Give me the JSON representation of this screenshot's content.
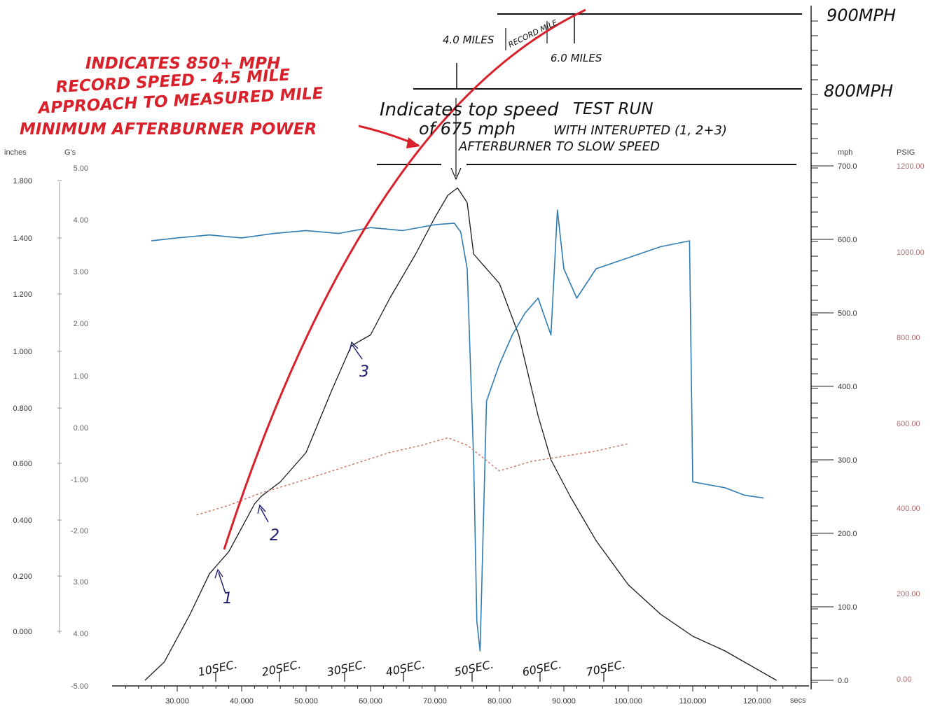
{
  "chart_data": {
    "type": "line",
    "x": {
      "ticks": [
        "30.000",
        "40.000",
        "50.000",
        "60.000",
        "70.000",
        "80.000",
        "90.000",
        "100.000",
        "110.000",
        "120.000"
      ],
      "label": "secs",
      "range": [
        20,
        130
      ]
    },
    "axes": {
      "inches": {
        "label": "inches",
        "ticks": [
          "1.800",
          "1.400",
          "1.200",
          "1.000",
          "0.800",
          "0.600",
          "0.400",
          "0.200",
          "0.000"
        ]
      },
      "g": {
        "label": "G's",
        "ticks": [
          "5.00",
          "4.00",
          "3.00",
          "2.00",
          "1.00",
          "0.00",
          "-1.00",
          "-2.00",
          "3.00",
          "4.00",
          "-5.00"
        ]
      },
      "mph": {
        "label": "mph",
        "ticks": [
          "700.0",
          "600.0",
          "500.0",
          "400.0",
          "300.0",
          "200.0",
          "100.0",
          "0.0"
        ],
        "range": [
          0,
          700
        ]
      },
      "psig": {
        "label": "PSIG",
        "ticks": [
          "1200.00",
          "1000.00",
          "800.00",
          "600.00",
          "400.00",
          "200.00",
          "0.00"
        ]
      }
    },
    "series": [
      {
        "color": "#1a1a1a",
        "points": [
          [
            25,
            0
          ],
          [
            28,
            25
          ],
          [
            32,
            90
          ],
          [
            35,
            145
          ],
          [
            36.5,
            160
          ],
          [
            38,
            175
          ],
          [
            42,
            240
          ],
          [
            43,
            250
          ],
          [
            46,
            270
          ],
          [
            50,
            310
          ],
          [
            54,
            395
          ],
          [
            57,
            455
          ],
          [
            60,
            470
          ],
          [
            63,
            520
          ],
          [
            67,
            580
          ],
          [
            70,
            630
          ],
          [
            72,
            660
          ],
          [
            73.5,
            670
          ],
          [
            75,
            650
          ],
          [
            76,
            580
          ],
          [
            78,
            560
          ],
          [
            80,
            540
          ],
          [
            83,
            470
          ],
          [
            86,
            360
          ],
          [
            88,
            300
          ],
          [
            91,
            250
          ],
          [
            95,
            190
          ],
          [
            100,
            130
          ],
          [
            105,
            90
          ],
          [
            110,
            60
          ],
          [
            115,
            40
          ],
          [
            120,
            15
          ],
          [
            123,
            0
          ]
        ]
      },
      {
        "color": "#2f7cb2",
        "points": [
          [
            26,
            598
          ],
          [
            30,
            602
          ],
          [
            35,
            606
          ],
          [
            40,
            602
          ],
          [
            45,
            608
          ],
          [
            50,
            612
          ],
          [
            55,
            608
          ],
          [
            60,
            616
          ],
          [
            65,
            612
          ],
          [
            70,
            620
          ],
          [
            73,
            622
          ],
          [
            74,
            610
          ],
          [
            75,
            560
          ],
          [
            76,
            300
          ],
          [
            76.5,
            80
          ],
          [
            77,
            40
          ],
          [
            78,
            380
          ],
          [
            80,
            430
          ],
          [
            82,
            470
          ],
          [
            84,
            500
          ],
          [
            86,
            520
          ],
          [
            88,
            470
          ],
          [
            89,
            640
          ],
          [
            90,
            560
          ],
          [
            92,
            520
          ],
          [
            95,
            560
          ],
          [
            100,
            575
          ],
          [
            105,
            590
          ],
          [
            109.5,
            598
          ],
          [
            110,
            270
          ],
          [
            115,
            262
          ],
          [
            118,
            252
          ],
          [
            121,
            248
          ]
        ]
      },
      {
        "color": "#c9725c",
        "points": [
          [
            33,
            225
          ],
          [
            38,
            238
          ],
          [
            43,
            255
          ],
          [
            48,
            268
          ],
          [
            53,
            282
          ],
          [
            58,
            296
          ],
          [
            63,
            310
          ],
          [
            68,
            320
          ],
          [
            72,
            330
          ],
          [
            75,
            320
          ],
          [
            80,
            285
          ],
          [
            85,
            298
          ],
          [
            90,
            305
          ],
          [
            95,
            312
          ],
          [
            100,
            322
          ]
        ]
      }
    ],
    "overlay": {
      "color": "#d8212b",
      "lines": [
        {
          "text": "INDICATES 850+ MPH",
          "size": 24
        },
        {
          "text": "RECORD SPEED - 4.5 MILE",
          "size": 22
        },
        {
          "text": "APPROACH TO MEASURED MILE",
          "size": 21
        },
        {
          "text": "MINIMUM AFTERBURNER POWER",
          "size": 22
        }
      ],
      "speed_labels": [
        "900MPH",
        "800MPH"
      ],
      "miles": [
        "4.0 MILES",
        "RECORD MILE",
        "6.0 MILES"
      ],
      "top_speed_note": [
        "Indicates top speed",
        "of 675 mph"
      ],
      "test_run_note": [
        "TEST RUN",
        "WITH INTERUPTED (1, 2+3)",
        "AFTERBURNER TO SLOW SPEED"
      ],
      "markers": [
        "1",
        "2",
        "3"
      ],
      "time_marks": [
        "10SEC.",
        "20SEC.",
        "30SEC.",
        "40SEC.",
        "50SEC.",
        "60SEC.",
        "70SEC."
      ]
    }
  }
}
